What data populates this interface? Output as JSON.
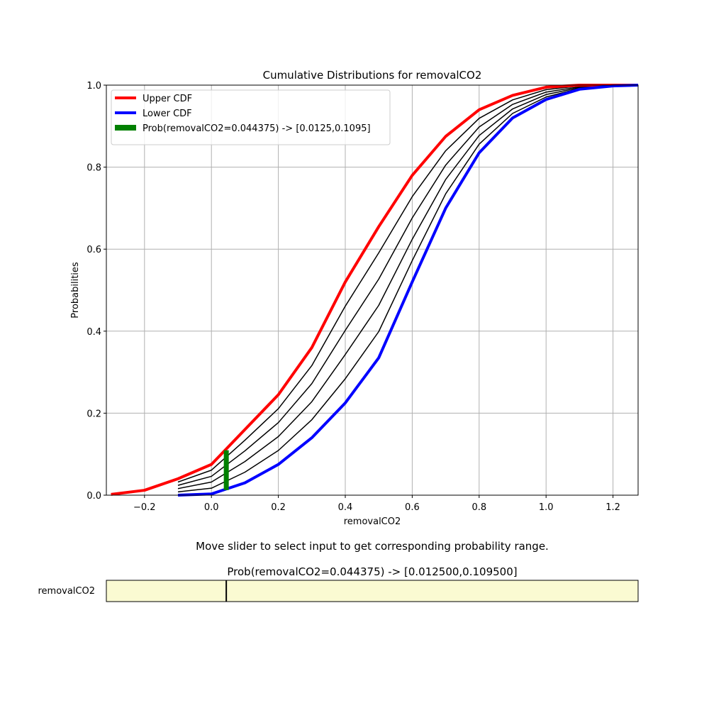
{
  "chart_data": {
    "type": "line",
    "title": "Cumulative Distributions for removalCO2",
    "xlabel": "removalCO2",
    "ylabel": "Probabilities",
    "x": [
      -0.3,
      -0.2,
      -0.1,
      0,
      0.1,
      0.2,
      0.3,
      0.4,
      0.5,
      0.6,
      0.7,
      0.8,
      0.9,
      1.0,
      1.1,
      1.2,
      1.275
    ],
    "series": [
      {
        "name": "Upper CDF",
        "color": "#ff0000",
        "values": [
          0.002,
          0.012,
          0.04,
          0.075,
          0.16,
          0.245,
          0.36,
          0.52,
          0.655,
          0.78,
          0.875,
          0.94,
          0.975,
          0.995,
          1.0,
          1.0,
          1.0
        ]
      },
      {
        "name": "Lower CDF",
        "color": "#0000ff",
        "values": [
          null,
          null,
          0.0,
          0.003,
          0.03,
          0.075,
          0.14,
          0.225,
          0.335,
          0.52,
          0.7,
          0.835,
          0.92,
          0.965,
          0.99,
          0.998,
          1.0
        ]
      },
      {
        "color": "#000000",
        "values": [
          null,
          null,
          0.032,
          0.061,
          0.134,
          0.211,
          0.316,
          0.461,
          0.591,
          0.728,
          0.84,
          0.919,
          0.964,
          0.989,
          0.998,
          1.0,
          1.0
        ]
      },
      {
        "color": "#000000",
        "values": [
          null,
          null,
          0.024,
          0.046,
          0.108,
          0.177,
          0.272,
          0.402,
          0.527,
          0.676,
          0.805,
          0.898,
          0.953,
          0.983,
          0.996,
          0.999,
          1.0
        ]
      },
      {
        "color": "#000000",
        "values": [
          null,
          null,
          0.016,
          0.032,
          0.082,
          0.143,
          0.228,
          0.343,
          0.463,
          0.624,
          0.77,
          0.877,
          0.942,
          0.977,
          0.994,
          0.999,
          1.0
        ]
      },
      {
        "color": "#000000",
        "values": [
          null,
          null,
          0.008,
          0.017,
          0.056,
          0.109,
          0.184,
          0.284,
          0.399,
          0.572,
          0.735,
          0.856,
          0.931,
          0.971,
          0.992,
          0.998,
          1.0
        ]
      }
    ],
    "interval": {
      "name": "Prob(removalCO2=0.044375) -> [0.0125,0.1095]",
      "color": "#008000",
      "x": 0.044375,
      "low": 0.0125,
      "high": 0.1095
    },
    "xlim": [
      -0.314,
      1.275
    ],
    "ylim": [
      0,
      1
    ],
    "xticks": [
      {
        "value": -0.2,
        "label": "−0.2"
      },
      {
        "value": 0,
        "label": "0.0"
      },
      0.2,
      0.4,
      0.6,
      0.8,
      {
        "value": 1.0,
        "label": "1.0"
      },
      1.2
    ],
    "yticks": [
      {
        "value": 0,
        "label": "0.0"
      },
      0.2,
      0.4,
      0.6,
      0.8,
      {
        "value": 1.0,
        "label": "1.0"
      }
    ],
    "grid": true,
    "legend": "upper left",
    "instruction": "Move slider to select input to get corresponding probability range.",
    "result": "Prob(removalCO2=0.044375) -> [0.012500,0.109500]",
    "slider": {
      "label": "removalCO2",
      "min": -0.314,
      "max": 1.275,
      "value": 0.044375,
      "color": "#fafad2"
    }
  }
}
